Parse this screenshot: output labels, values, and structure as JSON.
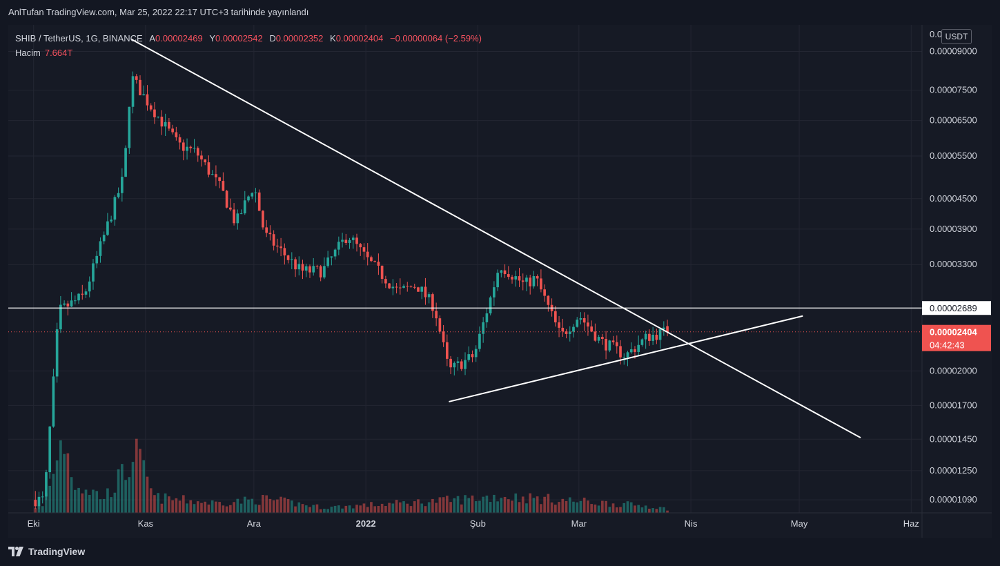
{
  "publish_line": "AnlTufan TradingView.com, Mar 25, 2022 22:17 UTC+3 tarihinde yayınlandı",
  "legend": {
    "symbol": "SHIB / TetherUS, 1G, BINANCE",
    "open_label": "A",
    "open": "0.00002469",
    "high_label": "Y",
    "high": "0.00002542",
    "low_label": "D",
    "low": "0.00002352",
    "close_label": "K",
    "close": "0.00002404",
    "change": "−0.00000064 (−2.59%)",
    "volume_label": "Hacim",
    "volume": "7.664T"
  },
  "currency_button": "USDT",
  "brand": "TradingView",
  "colors": {
    "up": "#26a69a",
    "down": "#ef5350",
    "background": "#161a25",
    "line": "#ffffff"
  },
  "chart_data": {
    "type": "candlestick",
    "symbol": "SHIB / TetherUS",
    "interval": "1G",
    "exchange": "BINANCE",
    "y_scale": "log",
    "y_ticks": [
      "0.00009000",
      "0.00007500",
      "0.00006500",
      "0.00005500",
      "0.00004500",
      "0.00003900",
      "0.00003300",
      "0.00002000",
      "0.00001700",
      "0.00001450",
      "0.00001250",
      "0.00001090"
    ],
    "y_tick_values": [
      9e-05,
      7.5e-05,
      6.5e-05,
      5.5e-05,
      4.5e-05,
      3.9e-05,
      3.3e-05,
      2e-05,
      1.7e-05,
      1.45e-05,
      1.25e-05,
      1.09e-05
    ],
    "y_top_label": "0.0001000",
    "x_ticks": [
      {
        "label": "Eki",
        "date": "2021-10-01"
      },
      {
        "label": "Kas",
        "date": "2021-11-01"
      },
      {
        "label": "Ara",
        "date": "2021-12-01"
      },
      {
        "label": "2022",
        "date": "2022-01-01",
        "bold": true
      },
      {
        "label": "Şub",
        "date": "2022-02-01"
      },
      {
        "label": "Mar",
        "date": "2022-03-01"
      },
      {
        "label": "Nis",
        "date": "2022-04-01"
      },
      {
        "label": "May",
        "date": "2022-05-01"
      },
      {
        "label": "Haz",
        "date": "2022-06-01"
      }
    ],
    "x_range": [
      "2021-09-24",
      "2022-06-04"
    ],
    "y_range": [
      1.025e-05,
      0.000102
    ],
    "horizontal_line": {
      "price": 2.689e-05,
      "label": "0.00002689"
    },
    "last_price": {
      "price": 2.404e-05,
      "label": "0.00002404",
      "countdown": "04:42:43"
    },
    "trendlines": [
      {
        "name": "resistance",
        "from": {
          "date": "2021-10-28",
          "price": 9.54e-05
        },
        "to": {
          "date": "2022-05-18",
          "price": 1.46e-05
        }
      },
      {
        "name": "support",
        "from": {
          "date": "2022-01-24",
          "price": 1.73e-05
        },
        "to": {
          "date": "2022-05-02",
          "price": 2.59e-05
        }
      }
    ],
    "ohlc_key_points": [
      {
        "date": "2021-10-04",
        "price": 1.09e-05
      },
      {
        "date": "2021-10-08",
        "price": 2.65e-05
      },
      {
        "date": "2021-10-15",
        "price": 2.85e-05
      },
      {
        "date": "2021-10-26",
        "price": 5e-05
      },
      {
        "date": "2021-10-28",
        "price": 8e-05
      },
      {
        "date": "2021-11-01",
        "price": 7.2e-05
      },
      {
        "date": "2021-11-10",
        "price": 5.8e-05
      },
      {
        "date": "2021-11-15",
        "price": 5.6e-05
      },
      {
        "date": "2021-11-22",
        "price": 4.7e-05
      },
      {
        "date": "2021-11-26",
        "price": 4e-05
      },
      {
        "date": "2021-12-01",
        "price": 4.8e-05
      },
      {
        "date": "2021-12-04",
        "price": 3.8e-05
      },
      {
        "date": "2021-12-14",
        "price": 3.2e-05
      },
      {
        "date": "2021-12-20",
        "price": 3.2e-05
      },
      {
        "date": "2021-12-27",
        "price": 3.8e-05
      },
      {
        "date": "2022-01-01",
        "price": 3.4e-05
      },
      {
        "date": "2022-01-10",
        "price": 2.9e-05
      },
      {
        "date": "2022-01-15",
        "price": 3e-05
      },
      {
        "date": "2022-01-20",
        "price": 2.7e-05
      },
      {
        "date": "2022-01-24",
        "price": 2e-05
      },
      {
        "date": "2022-01-31",
        "price": 2.15e-05
      },
      {
        "date": "2022-02-05",
        "price": 2.9e-05
      },
      {
        "date": "2022-02-07",
        "price": 3.3e-05
      },
      {
        "date": "2022-02-14",
        "price": 3e-05
      },
      {
        "date": "2022-02-17",
        "price": 3.1e-05
      },
      {
        "date": "2022-02-24",
        "price": 2.35e-05
      },
      {
        "date": "2022-03-01",
        "price": 2.6e-05
      },
      {
        "date": "2022-03-07",
        "price": 2.3e-05
      },
      {
        "date": "2022-03-14",
        "price": 2.15e-05
      },
      {
        "date": "2022-03-20",
        "price": 2.35e-05
      },
      {
        "date": "2022-03-25",
        "price": 2.4e-05
      }
    ],
    "volume_key_points": [
      {
        "date": "2021-10-03",
        "v": 0.8
      },
      {
        "date": "2021-10-07",
        "v": 6.5
      },
      {
        "date": "2021-10-08",
        "v": 11
      },
      {
        "date": "2021-10-12",
        "v": 4
      },
      {
        "date": "2021-10-20",
        "v": 2
      },
      {
        "date": "2021-10-27",
        "v": 6
      },
      {
        "date": "2021-10-28",
        "v": 8.5
      },
      {
        "date": "2021-11-03",
        "v": 2
      },
      {
        "date": "2021-11-20",
        "v": 1.3
      },
      {
        "date": "2021-12-04",
        "v": 1.8
      },
      {
        "date": "2021-12-20",
        "v": 0.7
      },
      {
        "date": "2022-01-22",
        "v": 1.6
      },
      {
        "date": "2022-02-07",
        "v": 2.2
      },
      {
        "date": "2022-02-20",
        "v": 1.8
      },
      {
        "date": "2022-03-20",
        "v": 0.9
      },
      {
        "date": "2022-03-25",
        "v": 0.5
      }
    ]
  }
}
